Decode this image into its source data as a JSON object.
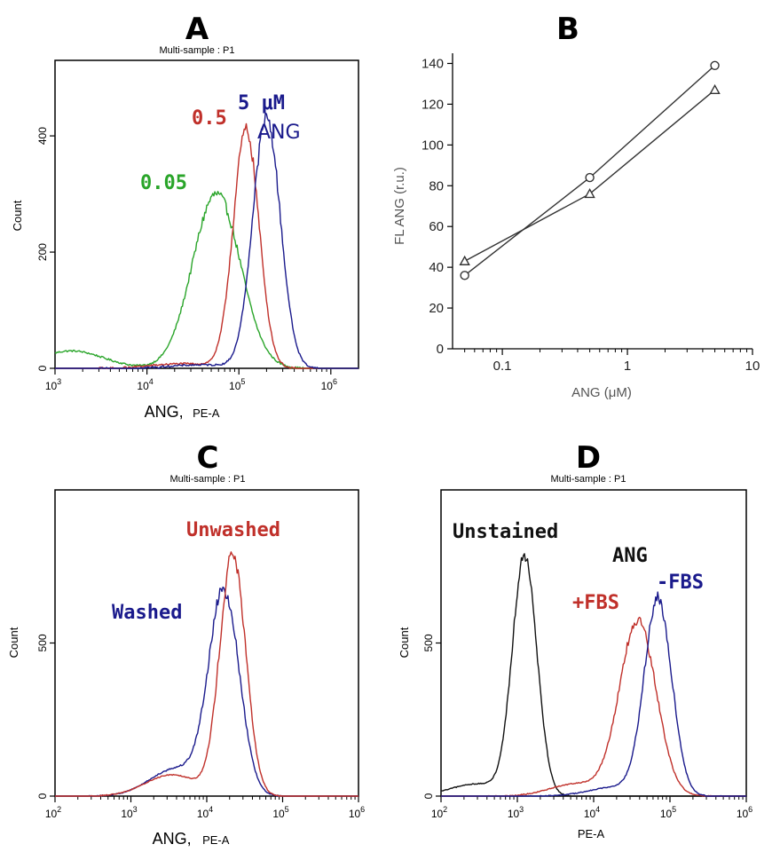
{
  "chart_data": [
    {
      "panel": "A",
      "type": "line",
      "subtitle": "Multi-sample : P1",
      "xlabel_main": "ANG,",
      "xlabel_unit": "PE-A",
      "ylabel": "Count",
      "x_scale": "log",
      "xlim": [
        1000,
        2000000
      ],
      "ylim": [
        0,
        530
      ],
      "x_ticks": [
        {
          "v": 1000,
          "b": "10",
          "e": "3"
        },
        {
          "v": 10000,
          "b": "10",
          "e": "4"
        },
        {
          "v": 100000,
          "b": "10",
          "e": "5"
        },
        {
          "v": 1000000,
          "b": "10",
          "e": "6"
        }
      ],
      "y_ticks": [
        {
          "v": 0,
          "label": "0"
        },
        {
          "v": 200,
          "label": "200"
        },
        {
          "v": 400,
          "label": "400"
        }
      ],
      "series": [
        {
          "color": "#2aa52a",
          "mode": 57000,
          "sigma": 0.26,
          "peak": 300,
          "tail": [
            1500,
            30
          ]
        },
        {
          "color": "#c0302a",
          "mode": 120000,
          "sigma": 0.14,
          "peak": 410,
          "tail": [
            25000,
            8
          ]
        },
        {
          "color": "#1a1a8c",
          "mode": 200000,
          "sigma": 0.15,
          "peak": 430,
          "tail": [
            40000,
            6
          ]
        }
      ],
      "annotations": [
        {
          "text": "0.05",
          "color": "#2aa52a"
        },
        {
          "text": "0.5",
          "color": "#c0302a"
        },
        {
          "text": "5 μM",
          "color": "#1a1a8c"
        },
        {
          "text": "ANG",
          "color": "#1a1a8c"
        }
      ]
    },
    {
      "panel": "B",
      "type": "line",
      "xlabel": "ANG (μM)",
      "ylabel": "FL ANG (r.u.)",
      "x_scale": "log",
      "xlim": [
        0.04,
        10
      ],
      "ylim": [
        0,
        145
      ],
      "x_ticks": [
        {
          "v": 0.1,
          "label": "0.1"
        },
        {
          "v": 1,
          "label": "1"
        },
        {
          "v": 10,
          "label": "10"
        }
      ],
      "y_ticks": [
        {
          "v": 0,
          "label": "0"
        },
        {
          "v": 20,
          "label": "20"
        },
        {
          "v": 40,
          "label": "40"
        },
        {
          "v": 60,
          "label": "60"
        },
        {
          "v": 80,
          "label": "80"
        },
        {
          "v": 100,
          "label": "100"
        },
        {
          "v": 120,
          "label": "120"
        },
        {
          "v": 140,
          "label": "140"
        }
      ],
      "series": [
        {
          "marker": "circle",
          "x": [
            0.05,
            0.5,
            5
          ],
          "y": [
            36,
            84,
            139
          ]
        },
        {
          "marker": "triangle",
          "x": [
            0.05,
            0.5,
            5
          ],
          "y": [
            43,
            76,
            127
          ]
        }
      ]
    },
    {
      "panel": "C",
      "type": "line",
      "subtitle": "Multi-sample : P1",
      "xlabel_main": "ANG,",
      "xlabel_unit": "PE-A",
      "ylabel": "Count",
      "x_scale": "log",
      "xlim": [
        100,
        1000000
      ],
      "ylim": [
        0,
        1000
      ],
      "x_ticks": [
        {
          "v": 100,
          "b": "10",
          "e": "2"
        },
        {
          "v": 1000,
          "b": "10",
          "e": "3"
        },
        {
          "v": 10000,
          "b": "10",
          "e": "4"
        },
        {
          "v": 100000,
          "b": "10",
          "e": "5"
        },
        {
          "v": 1000000,
          "b": "10",
          "e": "6"
        }
      ],
      "y_ticks": [
        {
          "v": 0,
          "label": "0"
        },
        {
          "v": 500,
          "label": "500"
        }
      ],
      "series": [
        {
          "color": "#1a1a8c",
          "mode": 17000,
          "sigma": 0.2,
          "peak": 670,
          "tail": [
            4000,
            90
          ]
        },
        {
          "color": "#c0302a",
          "mode": 22000,
          "sigma": 0.17,
          "peak": 790,
          "tail": [
            3500,
            70
          ]
        }
      ],
      "annotations": [
        {
          "text": "Unwashed",
          "color": "#c0302a"
        },
        {
          "text": "Washed",
          "color": "#1a1a8c"
        }
      ]
    },
    {
      "panel": "D",
      "type": "line",
      "subtitle": "Multi-sample : P1",
      "xlabel": "PE-A",
      "ylabel": "Count",
      "x_scale": "log",
      "xlim": [
        100,
        1000000
      ],
      "ylim": [
        0,
        1000
      ],
      "x_ticks": [
        {
          "v": 100,
          "b": "10",
          "e": "2"
        },
        {
          "v": 1000,
          "b": "10",
          "e": "3"
        },
        {
          "v": 10000,
          "b": "10",
          "e": "4"
        },
        {
          "v": 100000,
          "b": "10",
          "e": "5"
        },
        {
          "v": 1000000,
          "b": "10",
          "e": "6"
        }
      ],
      "y_ticks": [
        {
          "v": 0,
          "label": "0"
        },
        {
          "v": 500,
          "label": "500"
        }
      ],
      "series": [
        {
          "color": "#111111",
          "mode": 1250,
          "sigma": 0.16,
          "peak": 790,
          "tail": [
            300,
            40
          ]
        },
        {
          "color": "#c0302a",
          "mode": 38000,
          "sigma": 0.24,
          "peak": 570,
          "tail": [
            6000,
            40
          ]
        },
        {
          "color": "#1a1a8c",
          "mode": 70000,
          "sigma": 0.18,
          "peak": 640,
          "tail": [
            20000,
            30
          ]
        }
      ],
      "annotations": [
        {
          "text": "Unstained",
          "color": "#111111"
        },
        {
          "text": "ANG",
          "color": "#111111"
        },
        {
          "text": "-FBS",
          "color": "#1a1a8c"
        },
        {
          "text": "+FBS",
          "color": "#c0302a"
        }
      ]
    }
  ]
}
